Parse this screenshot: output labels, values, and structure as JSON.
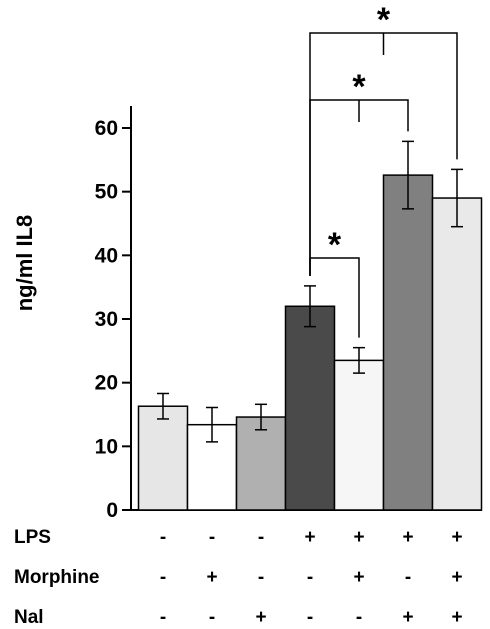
{
  "chart_data": {
    "type": "bar",
    "ylabel": "ng/ml IL8",
    "ylim": [
      0,
      60
    ],
    "yticks": [
      0,
      10,
      20,
      30,
      40,
      50,
      60
    ],
    "grid": false,
    "legend": "none",
    "values": [
      16.3,
      13.4,
      14.6,
      32.0,
      23.5,
      52.6,
      49.0
    ],
    "errors": [
      2.0,
      2.7,
      2.0,
      3.2,
      2.0,
      5.3,
      4.5
    ],
    "bar_colors": [
      "#e6e6e6",
      "#ffffff",
      "#b0b0b0",
      "#4a4a4a",
      "#f6f6f6",
      "#808080",
      "#e9e9e9"
    ],
    "conditions": [
      {
        "label": "LPS",
        "signs": [
          "-",
          "-",
          "-",
          "+",
          "+",
          "+",
          "+"
        ]
      },
      {
        "label": "Morphine",
        "signs": [
          "-",
          "+",
          "-",
          "-",
          "+",
          "-",
          "+"
        ]
      },
      {
        "label": "Nal",
        "signs": [
          "-",
          "-",
          "+",
          "-",
          "-",
          "+",
          "+"
        ]
      }
    ],
    "significance": [
      {
        "from": 3,
        "to": 4,
        "label": "*"
      },
      {
        "from": 3,
        "to": 5,
        "label": "*"
      },
      {
        "from": 3,
        "to": 6,
        "label": "*"
      }
    ]
  }
}
